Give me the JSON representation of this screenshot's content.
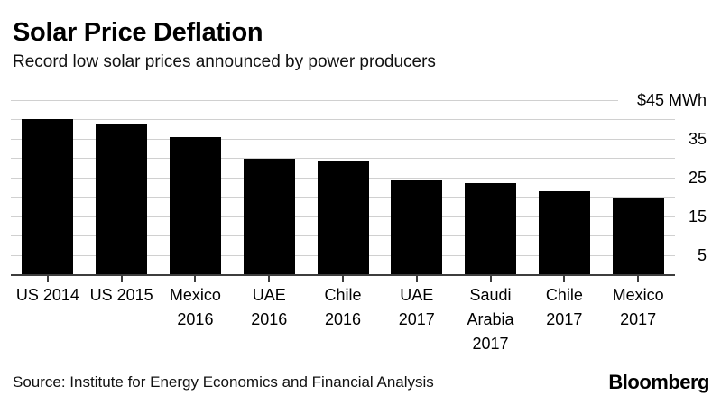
{
  "header": {
    "title": "Solar Price Deflation",
    "subtitle": "Record low solar prices announced by power producers"
  },
  "footer": {
    "source": "Source: Institute for Energy Economics and Financial Analysis",
    "logo": "Bloomberg"
  },
  "chart_data": {
    "type": "bar",
    "title": "Solar Price Deflation",
    "subtitle": "Record low solar prices announced by power producers",
    "categories": [
      "US 2014",
      "US 2015",
      "Mexico\n2016",
      "UAE\n2016",
      "Chile\n2016",
      "UAE\n2017",
      "Saudi\nArabia\n2017",
      "Chile\n2017",
      "Mexico\n2017"
    ],
    "values": [
      40,
      38.7,
      35.5,
      29.9,
      29.1,
      24.2,
      23.6,
      21.5,
      19.7
    ],
    "unit": "$ per MWh",
    "xlabel": "",
    "ylabel": "$45 MWh",
    "ylim": [
      0,
      45
    ],
    "grid": "on",
    "gridline_step": 5,
    "legend": "none",
    "y_axis_position": "right",
    "y_ticks": [
      {
        "value": 45,
        "label": "$45 MWh"
      },
      {
        "value": 35,
        "label": "35"
      },
      {
        "value": 25,
        "label": "25"
      },
      {
        "value": 15,
        "label": "15"
      },
      {
        "value": 5,
        "label": "5"
      }
    ],
    "colors": {
      "bar": "#000000",
      "gridline": "#d0d0d0",
      "axis": "#3d3d3d",
      "text": "#000000",
      "background": "#ffffff"
    }
  }
}
